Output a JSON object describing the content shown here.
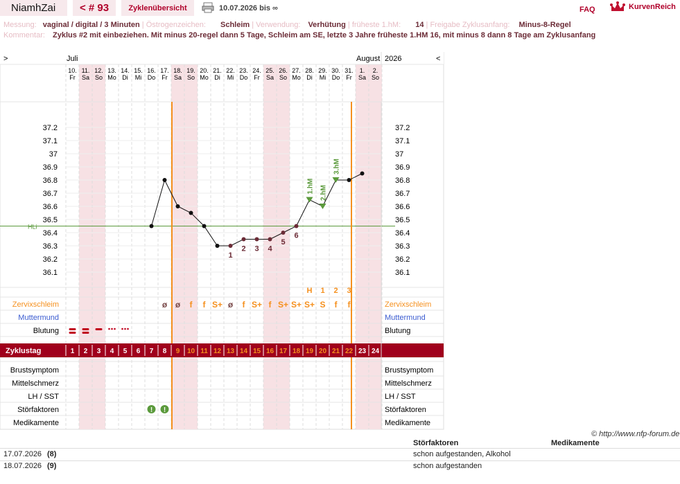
{
  "header": {
    "username": "NiamhZai",
    "cycle_nav": "< # 93",
    "overview_link": "Zyklenübersicht",
    "print_icon": "printer-icon",
    "date_range": "10.07.2026 bis ∞",
    "faq": "FAQ",
    "brand": "KurvenReich",
    "brand_icon": "crown-icon"
  },
  "info": {
    "messung_label": "Messung:",
    "messung_value": "vaginal / digital / 3 Minuten",
    "oestrogen_label": "Östrogenzeichen:",
    "oestrogen_value": "Schleim",
    "verwendung_label": "Verwendung:",
    "verwendung_value": "Verhütung",
    "hm_label": "früheste 1.hM:",
    "hm_value": "14",
    "freigabe_label": "Freigabe Zyklusanfang:",
    "freigabe_value": "Minus-8-Regel",
    "kommentar_label": "Kommentar:",
    "kommentar_value": "Zyklus #2  mit einbeziehen. Mit minus 20-regel dann 5 Tage,  Schleim am SE, letzte 3 Jahre früheste 1.HM 16, mit minus 8 dann 8 Tage am Zyklusanfang"
  },
  "chart_data": {
    "type": "line",
    "nav_prev": ">",
    "nav_next": "<",
    "month_start": "Juli",
    "month_end": "August",
    "year": "2026",
    "days": [
      "10.",
      "11.",
      "12.",
      "13.",
      "14.",
      "15.",
      "16.",
      "17.",
      "18.",
      "19.",
      "20.",
      "21.",
      "22.",
      "23.",
      "24.",
      "25.",
      "26.",
      "27.",
      "28.",
      "29.",
      "30.",
      "31.",
      "1.",
      "2."
    ],
    "weekdays": [
      "Fr",
      "Sa",
      "So",
      "Mo",
      "Di",
      "Mi",
      "Do",
      "Fr",
      "Sa",
      "So",
      "Mo",
      "Di",
      "Mi",
      "Do",
      "Fr",
      "Sa",
      "So",
      "Mo",
      "Di",
      "Mi",
      "Do",
      "Fr",
      "Sa",
      "So"
    ],
    "weekend": [
      false,
      true,
      true,
      false,
      false,
      false,
      false,
      false,
      true,
      true,
      false,
      false,
      false,
      false,
      false,
      true,
      true,
      false,
      false,
      false,
      false,
      false,
      true,
      true
    ],
    "y_ticks": [
      "37.2",
      "37.1",
      "37",
      "36.9",
      "36.8",
      "36.7",
      "36.6",
      "36.5",
      "36.4",
      "36.3",
      "36.2",
      "36.1"
    ],
    "ylim": [
      36.0,
      37.3
    ],
    "temperatures": [
      null,
      null,
      null,
      null,
      null,
      null,
      36.45,
      36.8,
      36.6,
      36.55,
      36.45,
      36.3,
      36.3,
      36.35,
      36.35,
      36.35,
      36.4,
      36.45,
      36.65,
      36.6,
      36.8,
      36.8,
      36.85,
      null
    ],
    "low_count_labels": [
      null,
      null,
      null,
      null,
      null,
      null,
      null,
      null,
      null,
      null,
      null,
      null,
      "1",
      "2",
      "3",
      "4",
      "5",
      "6",
      null,
      null,
      null,
      null,
      null,
      null
    ],
    "hoch_labels": [
      null,
      null,
      null,
      null,
      null,
      null,
      null,
      null,
      null,
      null,
      null,
      null,
      null,
      null,
      null,
      null,
      null,
      null,
      "1.hM",
      "2.hM",
      "3.hM",
      null,
      null,
      null
    ],
    "coverline_label": "HLi",
    "coverline": 36.45,
    "peak_row": [
      null,
      null,
      null,
      null,
      null,
      null,
      null,
      null,
      null,
      null,
      null,
      null,
      null,
      null,
      null,
      null,
      null,
      null,
      "H",
      "1",
      "2",
      "3",
      null,
      null
    ],
    "cervix_row_label": "Zervixschleim",
    "cervix": [
      null,
      null,
      null,
      null,
      null,
      null,
      null,
      "ø",
      "ø",
      "f",
      "f",
      "S+",
      "ø",
      "f",
      "S+",
      "f",
      "S+",
      "S+",
      "S+",
      "S",
      "f",
      "f",
      null,
      null
    ],
    "muttermund_label": "Muttermund",
    "blutung_label": "Blutung",
    "blutung": [
      "heavy",
      "heavy",
      "medium",
      "light",
      "light",
      null,
      null,
      null,
      null,
      null,
      null,
      null,
      null,
      null,
      null,
      null,
      null,
      null,
      null,
      null,
      null,
      null,
      null,
      null
    ],
    "zyklustag_label": "Zyklustag",
    "zyklustag": [
      "1",
      "2",
      "3",
      "4",
      "5",
      "6",
      "7",
      "8",
      "9",
      "10",
      "11",
      "12",
      "13",
      "14",
      "15",
      "16",
      "17",
      "18",
      "19",
      "20",
      "21",
      "22",
      "23",
      "24"
    ],
    "rows_bottom": [
      "Brustsymptom",
      "Mittelschmerz",
      "LH / SST",
      "Störfaktoren",
      "Medikamente"
    ],
    "stoerfaktoren_days": [
      7,
      8
    ],
    "colors": {
      "accent": "#a0001c",
      "orange": "#f5901e",
      "green": "#5b9a3c",
      "point": "#6b2b36",
      "weekend": "#f7e1e4",
      "blue": "#3a5bd0"
    }
  },
  "footer": {
    "copyright": "© http://www.nfp-forum.de",
    "col_stoer": "Störfaktoren",
    "col_med": "Medikamente",
    "rows": [
      {
        "date": "17.07.2026",
        "day": "(8)",
        "stoer": "schon aufgestanden, Alkohol"
      },
      {
        "date": "18.07.2026",
        "day": "(9)",
        "stoer": "schon aufgestanden"
      }
    ]
  }
}
